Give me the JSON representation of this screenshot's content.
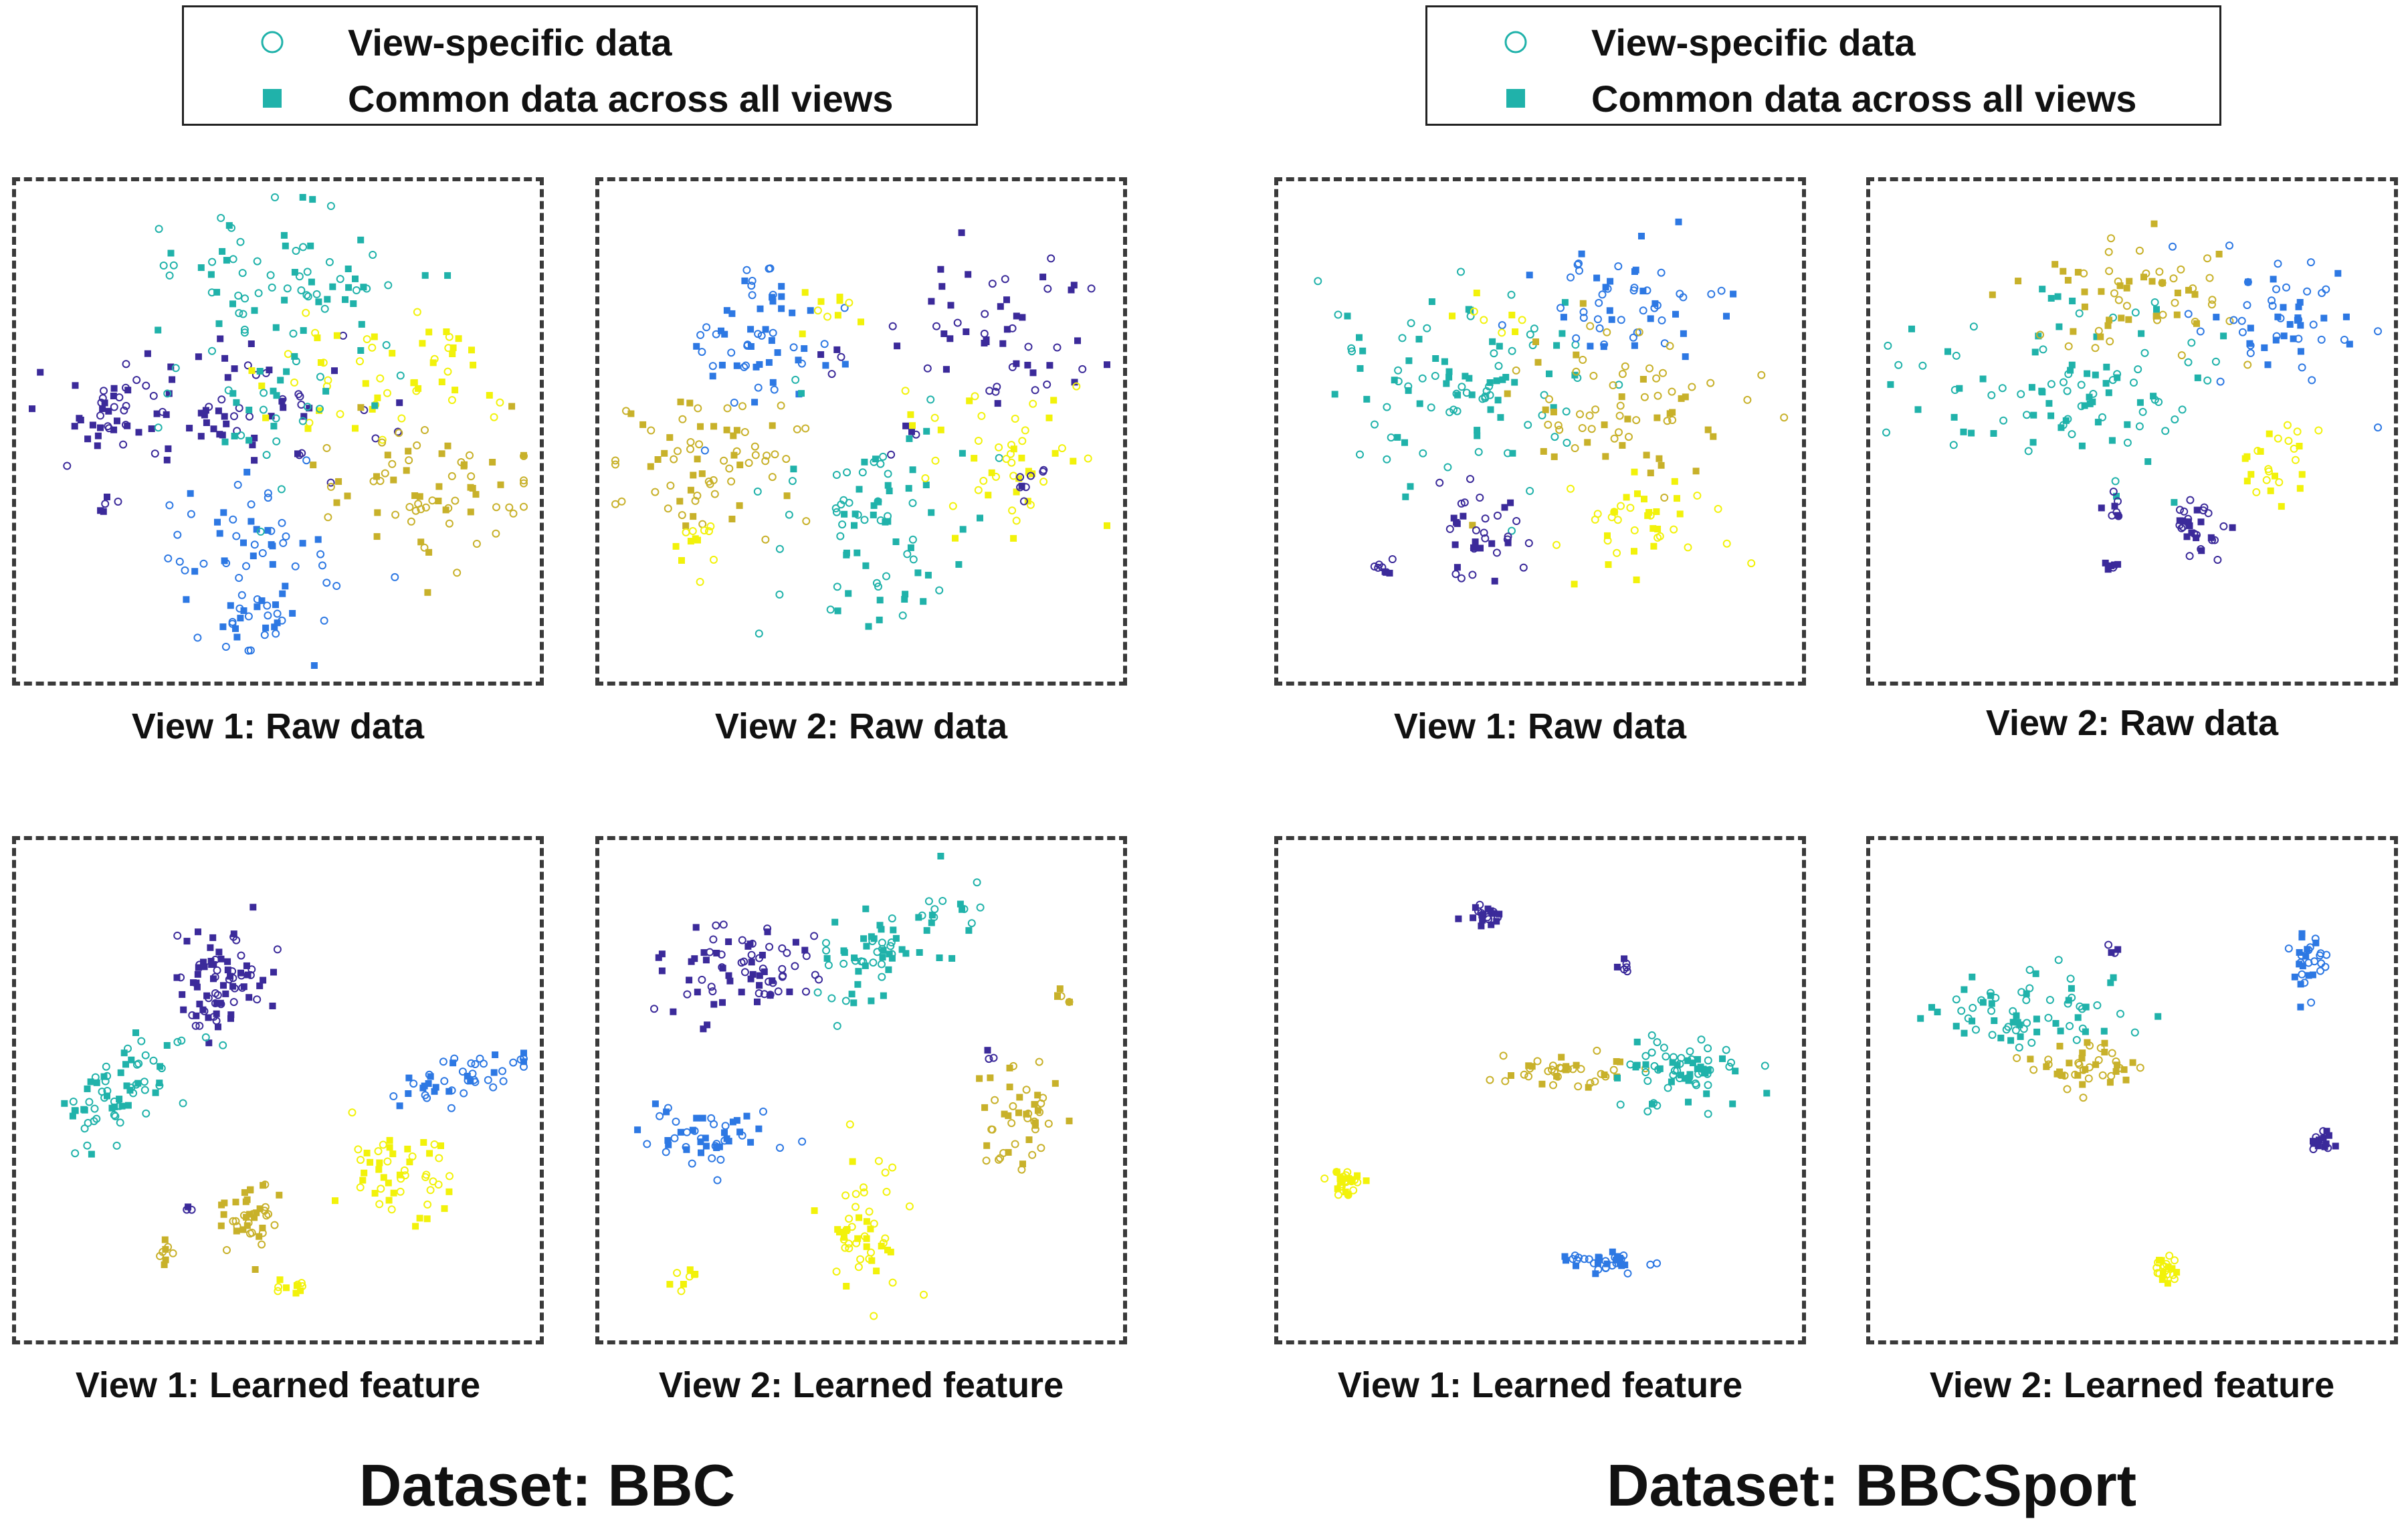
{
  "legend": {
    "view_specific_label": "View-specific data",
    "common_label": "Common data across all views",
    "marker_color": "#20b2aa"
  },
  "class_colors": {
    "indigo": "#3b2a9a",
    "blue": "#2d78e3",
    "teal": "#20b2aa",
    "olive": "#c8b12a",
    "yellow": "#f2f20a"
  },
  "datasets": [
    {
      "name": "Dataset: BBC"
    },
    {
      "name": "Dataset: BBCSport"
    }
  ],
  "panels": [
    {
      "caption": "View 1: Raw data"
    },
    {
      "caption": "View 2: Raw data"
    },
    {
      "caption": "View 1: Learned feature"
    },
    {
      "caption": "View 2: Learned feature"
    },
    {
      "caption": "View 1: Raw data"
    },
    {
      "caption": "View 2: Raw data"
    },
    {
      "caption": "View 1: Learned feature"
    },
    {
      "caption": "View 2: Learned feature"
    }
  ],
  "chart_data": [
    {
      "type": "scatter",
      "title": "View 1: Raw data",
      "dataset": "BBC",
      "xlim": [
        0,
        100
      ],
      "ylim": [
        0,
        100
      ],
      "clusters": [
        {
          "cls": "teal",
          "cx": 50,
          "cy": 82,
          "sx": 14,
          "sy": 8,
          "n": 70
        },
        {
          "cls": "indigo",
          "cx": 36,
          "cy": 55,
          "sx": 16,
          "sy": 8,
          "n": 80
        },
        {
          "cls": "indigo",
          "cx": 15,
          "cy": 55,
          "sx": 4,
          "sy": 4,
          "n": 20
        },
        {
          "cls": "indigo",
          "cx": 15,
          "cy": 34,
          "sx": 1,
          "sy": 1,
          "n": 5
        },
        {
          "cls": "blue",
          "cx": 44,
          "cy": 25,
          "sx": 10,
          "sy": 8,
          "n": 55
        },
        {
          "cls": "blue",
          "cx": 45,
          "cy": 10,
          "sx": 4,
          "sy": 3,
          "n": 25
        },
        {
          "cls": "yellow",
          "cx": 68,
          "cy": 62,
          "sx": 10,
          "sy": 8,
          "n": 45
        },
        {
          "cls": "yellow",
          "cx": 85,
          "cy": 64,
          "sx": 3,
          "sy": 3,
          "n": 10
        },
        {
          "cls": "olive",
          "cx": 78,
          "cy": 37,
          "sx": 12,
          "sy": 8,
          "n": 70
        },
        {
          "cls": "teal",
          "cx": 50,
          "cy": 60,
          "sx": 10,
          "sy": 10,
          "n": 40
        }
      ]
    },
    {
      "type": "scatter",
      "title": "View 2: Raw data",
      "dataset": "BBC",
      "xlim": [
        0,
        100
      ],
      "ylim": [
        0,
        100
      ],
      "clusters": [
        {
          "cls": "blue",
          "cx": 30,
          "cy": 70,
          "sx": 10,
          "sy": 8,
          "n": 60
        },
        {
          "cls": "indigo",
          "cx": 70,
          "cy": 68,
          "sx": 14,
          "sy": 9,
          "n": 60
        },
        {
          "cls": "olive",
          "cx": 20,
          "cy": 45,
          "sx": 10,
          "sy": 7,
          "n": 70
        },
        {
          "cls": "teal",
          "cx": 53,
          "cy": 28,
          "sx": 10,
          "sy": 12,
          "n": 80
        },
        {
          "cls": "yellow",
          "cx": 78,
          "cy": 45,
          "sx": 10,
          "sy": 7,
          "n": 50
        },
        {
          "cls": "yellow",
          "cx": 17,
          "cy": 28,
          "sx": 3,
          "sy": 3,
          "n": 12
        },
        {
          "cls": "yellow",
          "cx": 45,
          "cy": 77,
          "sx": 4,
          "sy": 4,
          "n": 10
        },
        {
          "cls": "indigo",
          "cx": 85,
          "cy": 40,
          "sx": 3,
          "sy": 3,
          "n": 8
        }
      ]
    },
    {
      "type": "scatter",
      "title": "View 1: Learned feature",
      "dataset": "BBC",
      "xlim": [
        0,
        100
      ],
      "ylim": [
        0,
        100
      ],
      "clusters": [
        {
          "cls": "indigo",
          "cx": 38,
          "cy": 74,
          "sx": 5,
          "sy": 6,
          "n": 80
        },
        {
          "cls": "teal",
          "cx": 18,
          "cy": 50,
          "sx": 7,
          "sy": 6,
          "n": 70,
          "rho": 0.7
        },
        {
          "cls": "blue",
          "cx": 85,
          "cy": 52,
          "sx": 7,
          "sy": 3,
          "n": 45,
          "rho": 0.6
        },
        {
          "cls": "yellow",
          "cx": 75,
          "cy": 31,
          "sx": 5,
          "sy": 4,
          "n": 50
        },
        {
          "cls": "olive",
          "cx": 45,
          "cy": 23,
          "sx": 3,
          "sy": 4,
          "n": 40
        },
        {
          "cls": "olive",
          "cx": 27,
          "cy": 15,
          "sx": 1,
          "sy": 1.5,
          "n": 8
        },
        {
          "cls": "yellow",
          "cx": 53,
          "cy": 8,
          "sx": 1.5,
          "sy": 1,
          "n": 10
        },
        {
          "cls": "indigo",
          "cx": 32,
          "cy": 24,
          "sx": 0.7,
          "sy": 0.7,
          "n": 3
        }
      ]
    },
    {
      "type": "scatter",
      "title": "View 2: Learned feature",
      "dataset": "BBC",
      "xlim": [
        0,
        100
      ],
      "ylim": [
        0,
        100
      ],
      "clusters": [
        {
          "cls": "indigo",
          "cx": 25,
          "cy": 76,
          "sx": 8,
          "sy": 5,
          "n": 75
        },
        {
          "cls": "teal",
          "cx": 55,
          "cy": 80,
          "sx": 8,
          "sy": 6,
          "n": 70,
          "rho": 0.6
        },
        {
          "cls": "blue",
          "cx": 20,
          "cy": 40,
          "sx": 8,
          "sy": 3,
          "n": 50
        },
        {
          "cls": "olive",
          "cx": 82,
          "cy": 45,
          "sx": 4,
          "sy": 6,
          "n": 45
        },
        {
          "cls": "olive",
          "cx": 91,
          "cy": 70,
          "sx": 1,
          "sy": 1,
          "n": 6
        },
        {
          "cls": "yellow",
          "cx": 50,
          "cy": 20,
          "sx": 4,
          "sy": 6,
          "n": 50
        },
        {
          "cls": "yellow",
          "cx": 14,
          "cy": 10,
          "sx": 1.5,
          "sy": 1.5,
          "n": 8
        },
        {
          "cls": "indigo",
          "cx": 77,
          "cy": 57,
          "sx": 1,
          "sy": 1,
          "n": 3
        }
      ]
    },
    {
      "type": "scatter",
      "title": "View 1: Raw data",
      "dataset": "BBCSport",
      "xlim": [
        0,
        100
      ],
      "ylim": [
        0,
        100
      ],
      "clusters": [
        {
          "cls": "teal",
          "cx": 35,
          "cy": 60,
          "sx": 15,
          "sy": 10,
          "n": 100
        },
        {
          "cls": "blue",
          "cx": 68,
          "cy": 78,
          "sx": 9,
          "sy": 6,
          "n": 55
        },
        {
          "cls": "olive",
          "cx": 68,
          "cy": 55,
          "sx": 14,
          "sy": 9,
          "n": 70
        },
        {
          "cls": "yellow",
          "cx": 70,
          "cy": 30,
          "sx": 8,
          "sy": 6,
          "n": 40
        },
        {
          "cls": "indigo",
          "cx": 38,
          "cy": 28,
          "sx": 5,
          "sy": 6,
          "n": 35
        },
        {
          "cls": "indigo",
          "cx": 18,
          "cy": 20,
          "sx": 1.5,
          "sy": 1,
          "n": 8
        },
        {
          "cls": "yellow",
          "cx": 40,
          "cy": 75,
          "sx": 5,
          "sy": 3,
          "n": 8
        }
      ]
    },
    {
      "type": "scatter",
      "title": "View 2: Raw data",
      "dataset": "BBCSport",
      "xlim": [
        0,
        100
      ],
      "ylim": [
        0,
        100
      ],
      "clusters": [
        {
          "cls": "teal",
          "cx": 35,
          "cy": 60,
          "sx": 16,
          "sy": 9,
          "n": 100
        },
        {
          "cls": "olive",
          "cx": 50,
          "cy": 78,
          "sx": 10,
          "sy": 7,
          "n": 60
        },
        {
          "cls": "blue",
          "cx": 80,
          "cy": 72,
          "sx": 8,
          "sy": 7,
          "n": 55
        },
        {
          "cls": "yellow",
          "cx": 78,
          "cy": 44,
          "sx": 5,
          "sy": 4,
          "n": 25
        },
        {
          "cls": "indigo",
          "cx": 63,
          "cy": 30,
          "sx": 3,
          "sy": 3,
          "n": 30
        },
        {
          "cls": "indigo",
          "cx": 45,
          "cy": 33,
          "sx": 2,
          "sy": 1.5,
          "n": 8
        },
        {
          "cls": "indigo",
          "cx": 46,
          "cy": 21,
          "sx": 0.8,
          "sy": 0.8,
          "n": 6
        }
      ]
    },
    {
      "type": "scatter",
      "title": "View 1: Learned feature",
      "dataset": "BBCSport",
      "xlim": [
        0,
        100
      ],
      "ylim": [
        0,
        100
      ],
      "clusters": [
        {
          "cls": "indigo",
          "cx": 39,
          "cy": 87,
          "sx": 2,
          "sy": 1,
          "n": 20
        },
        {
          "cls": "indigo",
          "cx": 67,
          "cy": 76,
          "sx": 0.8,
          "sy": 0.8,
          "n": 6
        },
        {
          "cls": "olive",
          "cx": 55,
          "cy": 54,
          "sx": 6,
          "sy": 2,
          "n": 40
        },
        {
          "cls": "teal",
          "cx": 80,
          "cy": 54,
          "sx": 7,
          "sy": 4,
          "n": 70
        },
        {
          "cls": "yellow",
          "cx": 11,
          "cy": 30,
          "sx": 2,
          "sy": 1.5,
          "n": 30
        },
        {
          "cls": "blue",
          "cx": 63,
          "cy": 13,
          "sx": 5,
          "sy": 1,
          "n": 35
        }
      ]
    },
    {
      "type": "scatter",
      "title": "View 2: Learned feature",
      "dataset": "BBCSport",
      "xlim": [
        0,
        100
      ],
      "ylim": [
        0,
        100
      ],
      "clusters": [
        {
          "cls": "teal",
          "cx": 30,
          "cy": 68,
          "sx": 9,
          "sy": 4,
          "n": 70
        },
        {
          "cls": "olive",
          "cx": 40,
          "cy": 55,
          "sx": 6,
          "sy": 3,
          "n": 45
        },
        {
          "cls": "blue",
          "cx": 85,
          "cy": 78,
          "sx": 2,
          "sy": 4,
          "n": 30
        },
        {
          "cls": "indigo",
          "cx": 89,
          "cy": 39,
          "sx": 1.2,
          "sy": 1.2,
          "n": 15
        },
        {
          "cls": "yellow",
          "cx": 57,
          "cy": 12,
          "sx": 1.5,
          "sy": 1.5,
          "n": 22
        },
        {
          "cls": "indigo",
          "cx": 46,
          "cy": 80,
          "sx": 0.6,
          "sy": 0.6,
          "n": 4
        }
      ]
    }
  ]
}
